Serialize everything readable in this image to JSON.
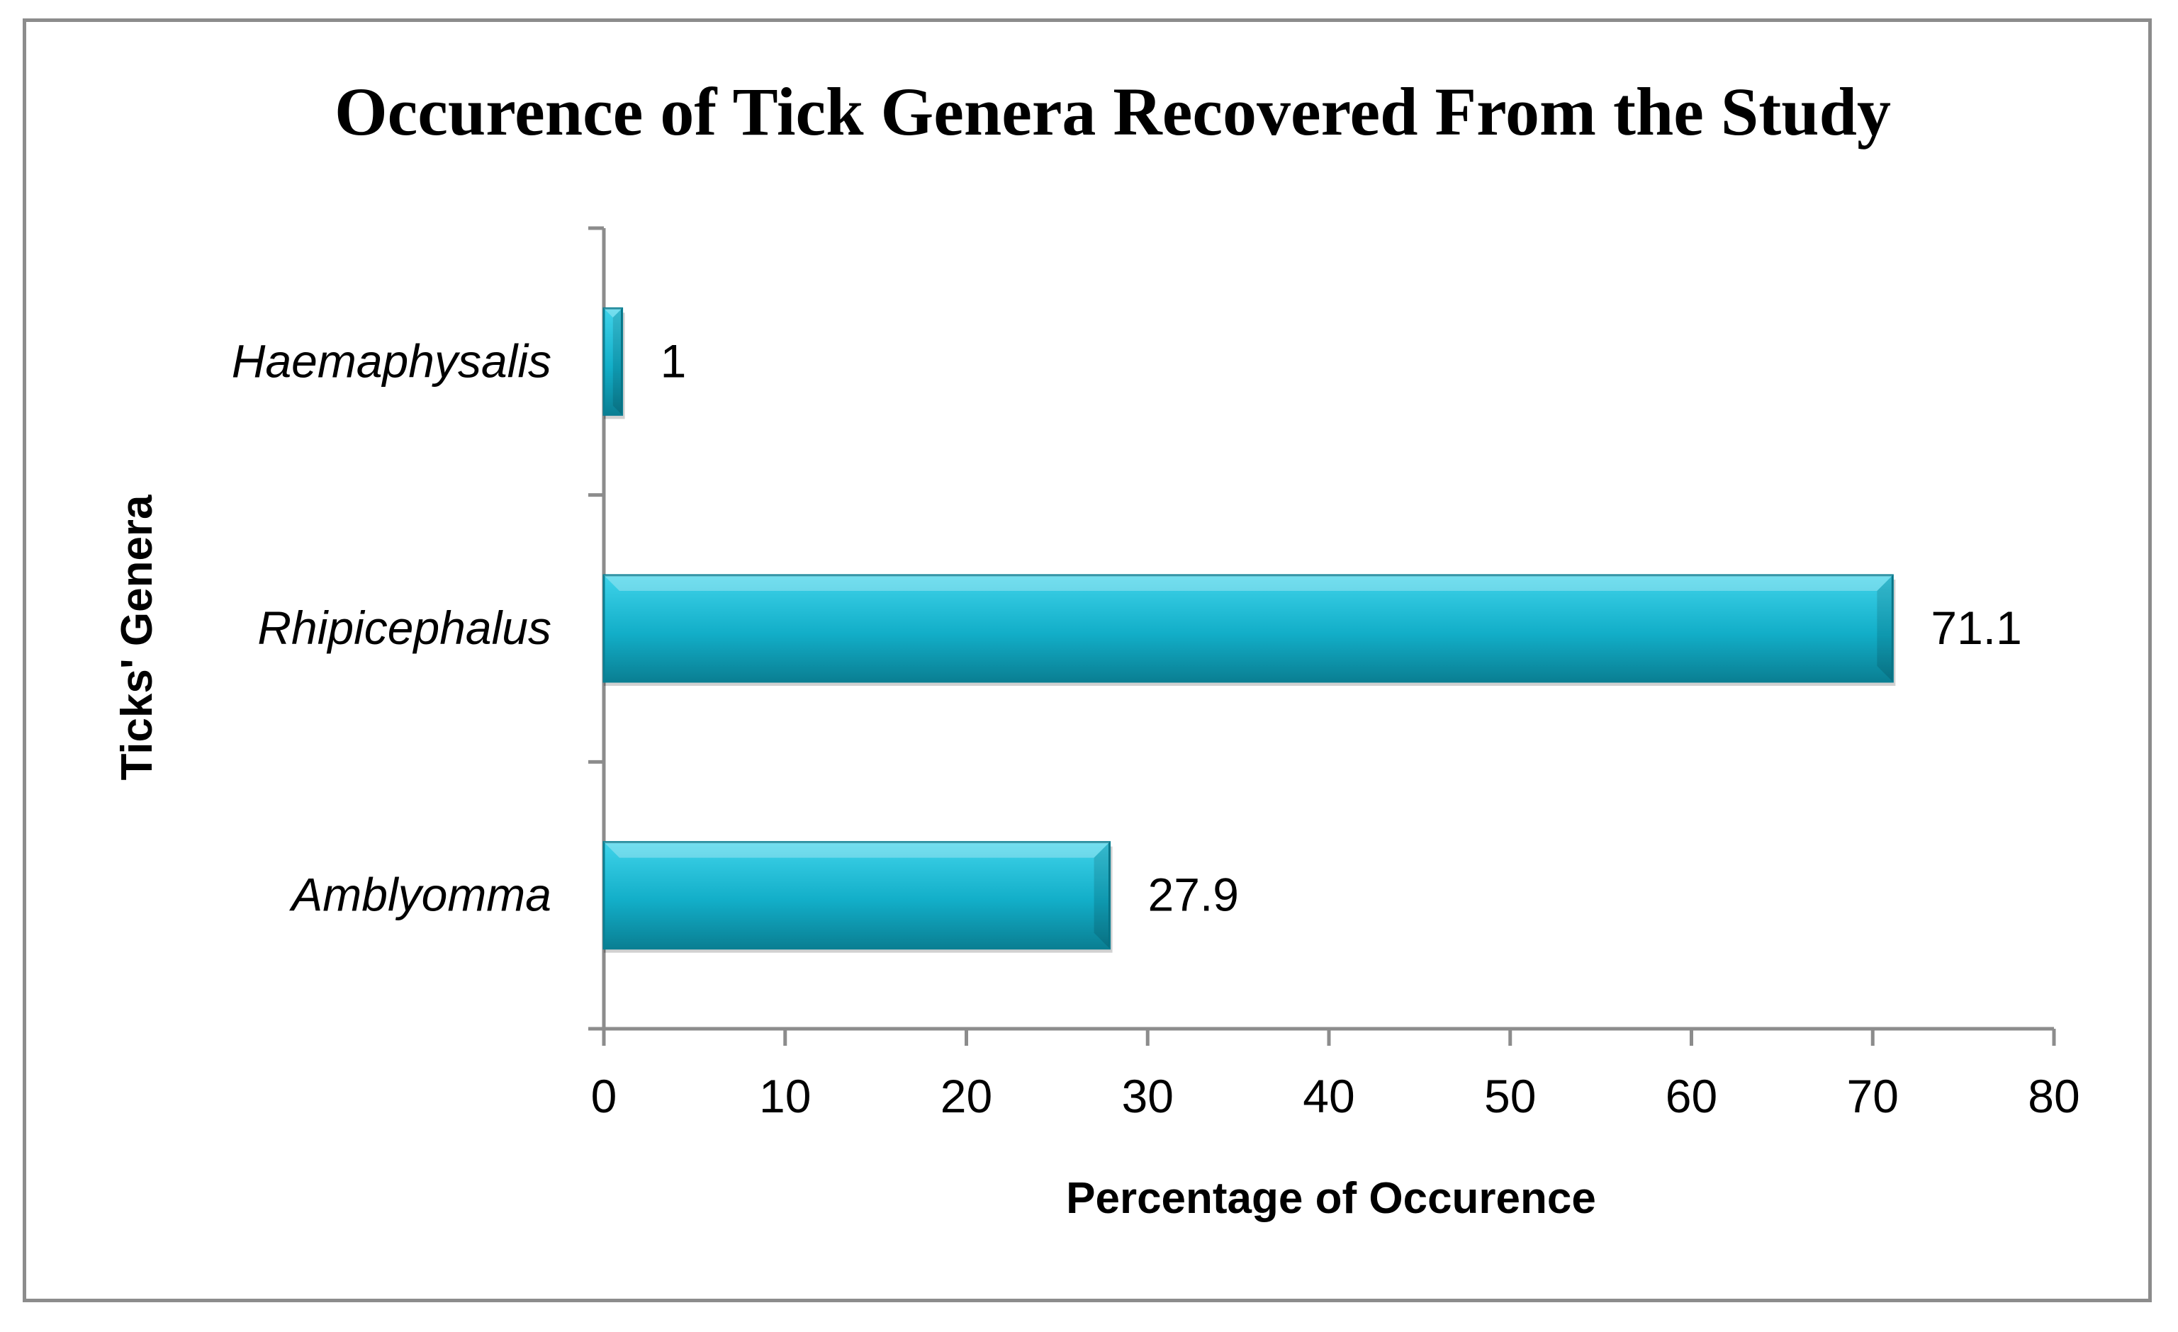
{
  "chart_data": {
    "type": "bar",
    "orientation": "horizontal",
    "title": "Occurence of Tick Genera Recovered From the Study",
    "xlabel": "Percentage of Occurence",
    "ylabel": "Ticks' Genera",
    "categories": [
      "Amblyomma",
      "Rhipicephalus",
      "Haemaphysalis"
    ],
    "values": [
      27.9,
      71.1,
      1
    ],
    "data_labels": [
      "27.9",
      "71.1",
      "1"
    ],
    "xlim": [
      0,
      80
    ],
    "xticks": [
      0,
      10,
      20,
      30,
      40,
      50,
      60,
      70,
      80
    ],
    "xtick_labels": [
      "0",
      "10",
      "20",
      "30",
      "40",
      "50",
      "60",
      "70",
      "80"
    ],
    "grid": false,
    "legend": "none",
    "colors": {
      "bar_light": "#3fd3ea",
      "bar_mid": "#12aec8",
      "bar_dark": "#0a7f93",
      "axis": "#8c8c8c",
      "frame": "#8c8c8c"
    }
  }
}
